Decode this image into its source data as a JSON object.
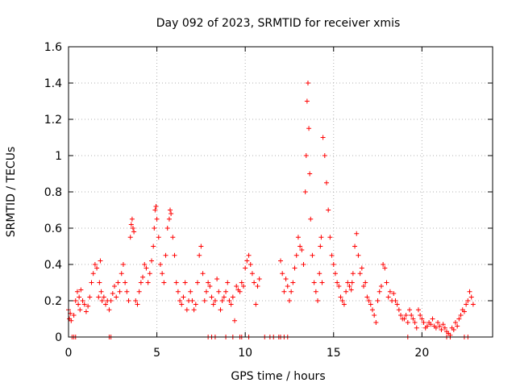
{
  "chart_data": {
    "type": "scatter",
    "title": "Day 092 of 2023, SRMTID for receiver xmis",
    "xlabel": "GPS time / hours",
    "ylabel": "SRMTID / TECUs",
    "xlim": [
      0,
      24
    ],
    "ylim": [
      0,
      1.6
    ],
    "xticks": [
      0,
      5,
      10,
      15,
      20
    ],
    "yticks": [
      0,
      0.2,
      0.4,
      0.6,
      0.8,
      1,
      1.2,
      1.4,
      1.6
    ],
    "xtick_labels": [
      "0",
      "5",
      "10",
      "15",
      "20"
    ],
    "ytick_labels": [
      "0",
      "0.2",
      "0.4",
      "0.6",
      "0.8",
      "1",
      "1.2",
      "1.4",
      "1.6"
    ],
    "grid": true,
    "marker": "+",
    "color": "#ff0000",
    "series": [
      {
        "name": "SRMTID",
        "x": [
          0.0,
          0.05,
          0.1,
          0.15,
          0.3,
          0.4,
          0.5,
          0.55,
          0.6,
          0.65,
          0.7,
          0.8,
          0.9,
          1.0,
          1.1,
          1.2,
          1.3,
          1.4,
          1.5,
          1.6,
          1.7,
          1.75,
          1.8,
          1.85,
          1.9,
          2.0,
          2.1,
          2.2,
          2.3,
          2.4,
          2.5,
          2.6,
          2.7,
          2.8,
          2.9,
          3.0,
          3.1,
          3.2,
          3.3,
          3.4,
          3.5,
          3.55,
          3.6,
          3.65,
          3.7,
          3.8,
          3.9,
          4.0,
          4.1,
          4.2,
          4.3,
          4.4,
          4.5,
          4.6,
          4.7,
          4.8,
          4.85,
          4.9,
          4.95,
          5.0,
          5.1,
          5.2,
          5.3,
          5.4,
          5.5,
          5.6,
          5.7,
          5.75,
          5.8,
          5.9,
          6.0,
          6.1,
          6.2,
          6.3,
          6.4,
          6.5,
          6.6,
          6.7,
          6.8,
          6.9,
          7.0,
          7.1,
          7.2,
          7.3,
          7.4,
          7.5,
          7.6,
          7.7,
          7.8,
          7.9,
          8.0,
          8.1,
          8.2,
          8.3,
          8.4,
          8.5,
          8.6,
          8.7,
          8.8,
          8.9,
          9.0,
          9.1,
          9.2,
          9.3,
          9.4,
          9.5,
          9.6,
          9.7,
          9.8,
          9.9,
          10.0,
          10.1,
          10.2,
          10.3,
          10.4,
          10.5,
          10.6,
          10.7,
          10.8,
          12.0,
          12.1,
          12.2,
          12.3,
          12.4,
          12.5,
          12.6,
          12.7,
          12.8,
          12.9,
          13.0,
          13.1,
          13.2,
          13.3,
          13.4,
          13.45,
          13.5,
          13.55,
          13.6,
          13.65,
          13.7,
          13.8,
          13.9,
          14.0,
          14.1,
          14.2,
          14.25,
          14.3,
          14.35,
          14.4,
          14.5,
          14.6,
          14.7,
          14.8,
          14.9,
          15.0,
          15.1,
          15.2,
          15.3,
          15.4,
          15.5,
          15.6,
          15.7,
          15.8,
          15.9,
          16.0,
          16.05,
          16.1,
          16.2,
          16.3,
          16.4,
          16.5,
          16.6,
          16.7,
          16.8,
          16.9,
          17.0,
          17.1,
          17.2,
          17.3,
          17.4,
          17.5,
          17.6,
          17.7,
          17.8,
          17.9,
          18.0,
          18.1,
          18.2,
          18.3,
          18.4,
          18.5,
          18.6,
          18.7,
          18.8,
          18.9,
          19.0,
          19.1,
          19.2,
          19.3,
          19.4,
          19.5,
          19.6,
          19.7,
          19.8,
          19.9,
          20.0,
          20.1,
          20.2,
          20.3,
          20.4,
          20.5,
          20.6,
          20.7,
          20.8,
          20.9,
          21.0,
          21.1,
          21.2,
          21.3,
          21.4,
          21.5,
          21.6,
          21.7,
          21.8,
          21.9,
          22.0,
          22.1,
          22.2,
          22.3,
          22.4,
          22.5,
          22.6,
          22.7,
          22.8,
          22.9,
          0.2,
          0.3,
          0.4,
          2.3,
          2.4,
          7.9,
          8.1,
          8.3,
          8.9,
          9.3,
          9.7,
          9.8,
          10.2,
          11.1,
          11.4,
          11.6,
          11.9,
          12.0,
          12.2,
          12.4,
          19.2,
          21.4,
          21.6,
          22.4,
          22.6
        ],
        "y": [
          0.15,
          0.1,
          0.13,
          0.09,
          0.12,
          0.2,
          0.25,
          0.18,
          0.22,
          0.15,
          0.26,
          0.2,
          0.18,
          0.14,
          0.17,
          0.22,
          0.3,
          0.35,
          0.4,
          0.38,
          0.22,
          0.3,
          0.42,
          0.25,
          0.2,
          0.22,
          0.18,
          0.2,
          0.15,
          0.2,
          0.24,
          0.28,
          0.22,
          0.3,
          0.25,
          0.35,
          0.4,
          0.3,
          0.25,
          0.2,
          0.55,
          0.62,
          0.65,
          0.6,
          0.58,
          0.2,
          0.18,
          0.25,
          0.3,
          0.33,
          0.4,
          0.38,
          0.3,
          0.35,
          0.42,
          0.5,
          0.6,
          0.7,
          0.72,
          0.65,
          0.55,
          0.4,
          0.35,
          0.3,
          0.45,
          0.6,
          0.65,
          0.7,
          0.68,
          0.55,
          0.45,
          0.3,
          0.25,
          0.2,
          0.18,
          0.22,
          0.3,
          0.15,
          0.2,
          0.25,
          0.2,
          0.15,
          0.18,
          0.3,
          0.45,
          0.5,
          0.35,
          0.2,
          0.25,
          0.3,
          0.28,
          0.22,
          0.18,
          0.2,
          0.32,
          0.25,
          0.15,
          0.2,
          0.22,
          0.25,
          0.3,
          0.2,
          0.18,
          0.22,
          0.09,
          0.28,
          0.26,
          0.25,
          0.3,
          0.28,
          0.38,
          0.42,
          0.45,
          0.4,
          0.35,
          0.3,
          0.18,
          0.28,
          0.32,
          0.42,
          0.35,
          0.25,
          0.32,
          0.28,
          0.2,
          0.25,
          0.3,
          0.38,
          0.45,
          0.55,
          0.5,
          0.48,
          0.4,
          0.8,
          1.0,
          1.3,
          1.4,
          1.15,
          0.9,
          0.65,
          0.45,
          0.3,
          0.25,
          0.2,
          0.35,
          0.5,
          0.55,
          0.3,
          1.1,
          1.0,
          0.85,
          0.7,
          0.55,
          0.45,
          0.4,
          0.35,
          0.3,
          0.28,
          0.22,
          0.2,
          0.18,
          0.25,
          0.3,
          0.28,
          0.26,
          0.3,
          0.35,
          0.5,
          0.57,
          0.45,
          0.35,
          0.38,
          0.28,
          0.3,
          0.22,
          0.2,
          0.18,
          0.15,
          0.12,
          0.08,
          0.2,
          0.25,
          0.28,
          0.4,
          0.38,
          0.3,
          0.22,
          0.25,
          0.2,
          0.24,
          0.2,
          0.18,
          0.15,
          0.12,
          0.1,
          0.1,
          0.12,
          0.08,
          0.15,
          0.12,
          0.1,
          0.08,
          0.05,
          0.15,
          0.12,
          0.1,
          0.08,
          0.05,
          0.06,
          0.08,
          0.07,
          0.1,
          0.06,
          0.05,
          0.08,
          0.06,
          0.04,
          0.07,
          0.05,
          0.03,
          0.02,
          0.01,
          0.05,
          0.04,
          0.08,
          0.06,
          0.1,
          0.12,
          0.15,
          0.14,
          0.18,
          0.2,
          0.25,
          0.22,
          0.18,
          0.0,
          0.0,
          0.0,
          0.0,
          0.0,
          0.0,
          0.0,
          0.0,
          0.0,
          0.0,
          0.0,
          0.0,
          0.0,
          0.0,
          0.0,
          0.0,
          0.0,
          0.0,
          0.0,
          0.0,
          0.0,
          0.0,
          0.0,
          0.0,
          0.0
        ]
      }
    ]
  }
}
